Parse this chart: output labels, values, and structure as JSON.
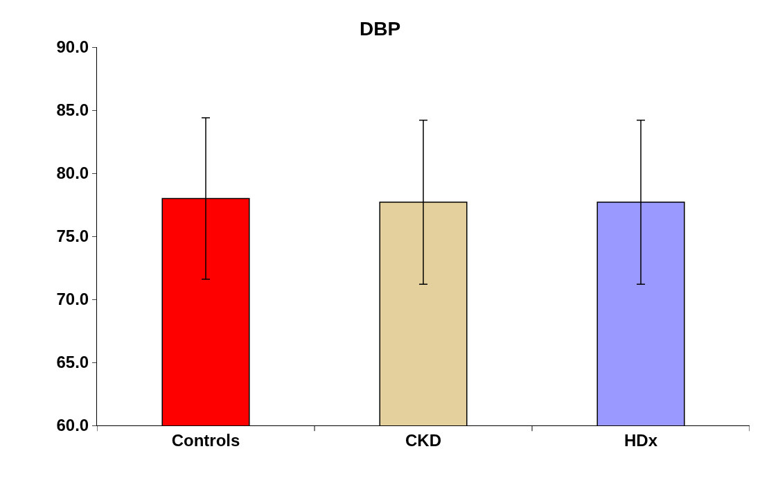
{
  "chart_data": {
    "type": "bar",
    "title": "DBP",
    "categories": [
      "Controls",
      "CKD",
      "HDx"
    ],
    "yticks": [
      {
        "value": 60,
        "label": "60.0"
      },
      {
        "value": 65,
        "label": "65.0"
      },
      {
        "value": 70,
        "label": "70.0"
      },
      {
        "value": 75,
        "label": "75.0"
      },
      {
        "value": 80,
        "label": "80.0"
      },
      {
        "value": 85,
        "label": "85.0"
      },
      {
        "value": 90,
        "label": "90.0"
      }
    ],
    "values": [
      78.0,
      77.7,
      77.7
    ],
    "errors": [
      6.4,
      6.5,
      6.5
    ],
    "colors": [
      "#ff0000",
      "#e3d09c",
      "#9999ff"
    ],
    "ylim": [
      60,
      90
    ]
  }
}
